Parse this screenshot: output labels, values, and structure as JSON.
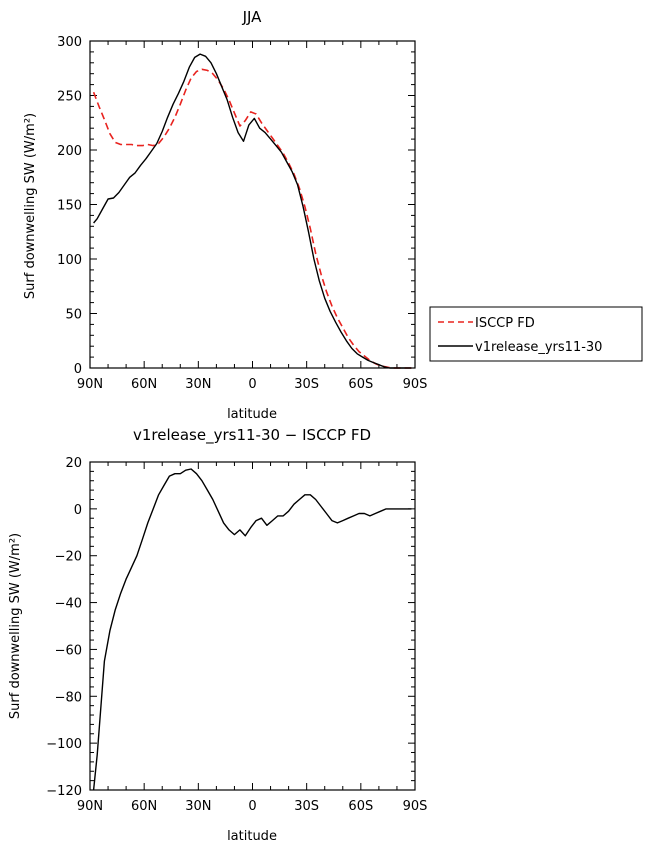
{
  "chart_data": [
    {
      "type": "line",
      "title": "JJA",
      "xlabel": "latitude",
      "ylabel": "Surf downwelling SW (W/m²)",
      "xlim": [
        -90,
        90
      ],
      "ylim": [
        0,
        300
      ],
      "xticks": [
        {
          "value": -90,
          "label": "90N"
        },
        {
          "value": -60,
          "label": "60N"
        },
        {
          "value": -30,
          "label": "30N"
        },
        {
          "value": 0,
          "label": "0"
        },
        {
          "value": 30,
          "label": "30S"
        },
        {
          "value": 60,
          "label": "60S"
        },
        {
          "value": 90,
          "label": "90S"
        }
      ],
      "yticks": [
        0,
        50,
        100,
        150,
        200,
        250,
        300
      ],
      "legend": {
        "placement": "right",
        "entries": [
          "ISCCP FD",
          "v1release_yrs11-30"
        ]
      },
      "series": [
        {
          "name": "ISCCP FD",
          "color": "#e8231f",
          "dash": true,
          "x": [
            -88,
            -85,
            -82,
            -79,
            -76,
            -73,
            -70,
            -67,
            -64,
            -61,
            -58,
            -55,
            -52,
            -49,
            -46,
            -43,
            -40,
            -37,
            -34,
            -31,
            -28,
            -25,
            -22,
            -19,
            -16,
            -13,
            -10,
            -7,
            -4,
            -1,
            2,
            5,
            8,
            11,
            14,
            17,
            20,
            23,
            26,
            29,
            32,
            35,
            38,
            41,
            44,
            47,
            50,
            53,
            56,
            59,
            62,
            65,
            68,
            71,
            74,
            77,
            80,
            83,
            86,
            88
          ],
          "values": [
            253,
            240,
            228,
            215,
            207,
            205,
            205,
            205,
            204,
            204,
            205,
            204,
            206,
            212,
            220,
            230,
            242,
            255,
            266,
            272,
            274,
            273,
            270,
            264,
            256,
            246,
            234,
            222,
            227,
            235,
            233,
            225,
            218,
            211,
            204,
            197,
            188,
            178,
            165,
            148,
            128,
            105,
            86,
            70,
            57,
            46,
            37,
            28,
            21,
            15,
            11,
            7,
            4,
            2,
            1,
            0,
            0,
            0,
            0,
            0
          ]
        },
        {
          "name": "v1release_yrs11-30",
          "color": "#000000",
          "dash": false,
          "x": [
            -88,
            -86,
            -83,
            -80,
            -77,
            -74,
            -71,
            -68,
            -65,
            -62,
            -59,
            -56,
            -53,
            -50,
            -47,
            -44,
            -41,
            -38,
            -35,
            -32,
            -29,
            -26,
            -23,
            -20,
            -17,
            -14,
            -11,
            -8,
            -5,
            -2,
            1,
            4,
            7,
            10,
            13,
            16,
            19,
            22,
            25,
            28,
            31,
            34,
            37,
            40,
            43,
            46,
            49,
            52,
            55,
            58,
            61,
            64,
            67,
            70,
            73,
            76,
            79,
            82,
            85,
            88
          ],
          "values": [
            133,
            137,
            146,
            155,
            156,
            161,
            168,
            175,
            179,
            186,
            192,
            199,
            206,
            217,
            230,
            242,
            252,
            263,
            276,
            285,
            288,
            286,
            280,
            270,
            258,
            246,
            230,
            216,
            208,
            223,
            229,
            220,
            216,
            210,
            204,
            198,
            189,
            180,
            168,
            148,
            125,
            100,
            80,
            64,
            52,
            42,
            33,
            25,
            18,
            13,
            10,
            7,
            5,
            3,
            1,
            0,
            0,
            0,
            0,
            0
          ]
        }
      ]
    },
    {
      "type": "line",
      "title": "v1release_yrs11-30 − ISCCP FD",
      "xlabel": "latitude",
      "ylabel": "Surf downwelling SW (W/m²)",
      "xlim": [
        -90,
        90
      ],
      "ylim": [
        -120,
        20
      ],
      "xticks": [
        {
          "value": -90,
          "label": "90N"
        },
        {
          "value": -60,
          "label": "60N"
        },
        {
          "value": -30,
          "label": "30N"
        },
        {
          "value": 0,
          "label": "0"
        },
        {
          "value": 30,
          "label": "30S"
        },
        {
          "value": 60,
          "label": "60S"
        },
        {
          "value": 90,
          "label": "90S"
        }
      ],
      "yticks": [
        -120,
        -100,
        -80,
        -60,
        -40,
        -20,
        0,
        20
      ],
      "series": [
        {
          "name": "difference",
          "color": "#000000",
          "dash": false,
          "x": [
            -88,
            -86,
            -84,
            -82,
            -79,
            -76,
            -73,
            -70,
            -67,
            -64,
            -61,
            -58,
            -55,
            -52,
            -49,
            -46,
            -43,
            -40,
            -37,
            -34,
            -31,
            -28,
            -25,
            -22,
            -19,
            -16,
            -13,
            -10,
            -7,
            -4,
            -1,
            2,
            5,
            8,
            11,
            14,
            17,
            20,
            23,
            26,
            29,
            32,
            35,
            38,
            41,
            44,
            47,
            50,
            53,
            56,
            59,
            62,
            65,
            68,
            71,
            74,
            77,
            80,
            83,
            86,
            88
          ],
          "values": [
            -120,
            -105,
            -85,
            -65,
            -52,
            -43,
            -36,
            -30,
            -25,
            -20,
            -13,
            -6,
            0,
            6,
            10,
            14,
            15,
            15,
            16.5,
            17,
            15,
            12,
            8,
            4,
            -1,
            -6,
            -9,
            -11,
            -9,
            -11.5,
            -8,
            -5,
            -4,
            -7,
            -5,
            -3,
            -3,
            -1,
            2,
            4,
            6,
            6,
            4,
            1,
            -2,
            -5,
            -6,
            -5,
            -4,
            -3,
            -2,
            -2,
            -3,
            -2,
            -1,
            0,
            0,
            0,
            0,
            0,
            0
          ]
        }
      ]
    }
  ]
}
